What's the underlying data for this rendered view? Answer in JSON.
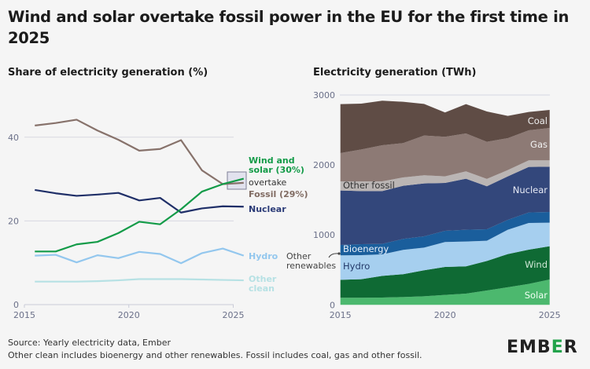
{
  "title": "Wind and solar overtake fossil power in the EU for the first time in 2025",
  "footer": {
    "source": "Source: Yearly electricity data, Ember",
    "note": "Other clean includes bioenergy and other renewables. Fossil includes coal, gas and other fossil."
  },
  "logo": {
    "text_a": "EMB",
    "text_b": "E",
    "text_c": "R",
    "accent": "#22a34b"
  },
  "chart_data": [
    {
      "type": "line",
      "title": "Share of electricity generation (%)",
      "x": [
        2015,
        2016,
        2017,
        2018,
        2019,
        2020,
        2021,
        2022,
        2023,
        2024,
        2025
      ],
      "xticks": [
        "2015",
        "2020",
        "2025"
      ],
      "yticks": [
        "0",
        "20",
        "40"
      ],
      "ylim": [
        0,
        48
      ],
      "grid": true,
      "annotation": "overtake",
      "series": [
        {
          "name": "Fossil (29%)",
          "color": "#87726b",
          "values": [
            42.8,
            43.4,
            44.2,
            41.6,
            39.4,
            36.8,
            37.2,
            39.3,
            32.1,
            28.8,
            29.1
          ]
        },
        {
          "name": "Wind and solar (30%)",
          "name_line1": "Wind and",
          "name_line2": "solar (30%)",
          "color": "#139b48",
          "values": [
            12.7,
            12.7,
            14.4,
            15.0,
            17.1,
            19.8,
            19.2,
            22.8,
            27.0,
            28.8,
            30.1
          ]
        },
        {
          "name": "Nuclear",
          "color": "#1f2f68",
          "values": [
            27.4,
            26.6,
            26.0,
            26.3,
            26.7,
            24.9,
            25.5,
            22.0,
            23.0,
            23.5,
            23.4
          ]
        },
        {
          "name": "Hydro",
          "color": "#93c7ee",
          "values": [
            11.7,
            11.9,
            10.1,
            11.8,
            11.1,
            12.6,
            12.1,
            9.9,
            12.3,
            13.4,
            11.7
          ]
        },
        {
          "name": "Other clean",
          "name_line1": "Other",
          "name_line2": "clean",
          "color": "#b6e1e4",
          "values": [
            5.5,
            5.5,
            5.5,
            5.6,
            5.8,
            6.1,
            6.1,
            6.1,
            6.0,
            5.9,
            5.8
          ]
        }
      ]
    },
    {
      "type": "area",
      "title": "Electricity generation (TWh)",
      "x": [
        2015,
        2016,
        2017,
        2018,
        2019,
        2020,
        2021,
        2022,
        2023,
        2024,
        2025
      ],
      "xticks": [
        "2015",
        "2020",
        "2025"
      ],
      "yticks": [
        "0",
        "1000",
        "2000",
        "3000"
      ],
      "ylim": [
        0,
        3000
      ],
      "stacked": true,
      "annotation": "Other renewables",
      "annotation_line1": "Other",
      "annotation_line2": "renewables",
      "series": [
        {
          "name": "Solar",
          "color": "#4cb86e",
          "values": [
            101,
            101,
            105,
            112,
            123,
            142,
            161,
            206,
            251,
            299,
            363
          ]
        },
        {
          "name": "Wind",
          "color": "#0f6a34",
          "values": [
            258,
            266,
            310,
            326,
            371,
            400,
            389,
            422,
            475,
            490,
            475
          ]
        },
        {
          "name": "Hydro",
          "color": "#a6cfef",
          "values": [
            348,
            344,
            307,
            348,
            325,
            356,
            355,
            289,
            348,
            382,
            337
          ]
        },
        {
          "name": "Bioenergy",
          "color": "#1a5e9c",
          "values": [
            150,
            157,
            150,
            157,
            161,
            161,
            169,
            164,
            142,
            150,
            153
          ]
        },
        {
          "name": "Nuclear",
          "color": "#33477b",
          "values": [
            778,
            759,
            755,
            759,
            756,
            684,
            729,
            614,
            621,
            651,
            647
          ]
        },
        {
          "name": "Other fossil",
          "color": "#bab5b4",
          "values": [
            131,
            139,
            139,
            120,
            116,
            94,
            105,
            105,
            90,
            93,
            90
          ]
        },
        {
          "name": "Gas",
          "color": "#8d7a75",
          "values": [
            404,
            455,
            516,
            490,
            568,
            565,
            542,
            531,
            456,
            430,
            464
          ]
        },
        {
          "name": "Coal",
          "color": "#5f4c45",
          "values": [
            699,
            655,
            636,
            591,
            453,
            348,
            419,
            434,
            318,
            262,
            258
          ]
        }
      ]
    }
  ]
}
